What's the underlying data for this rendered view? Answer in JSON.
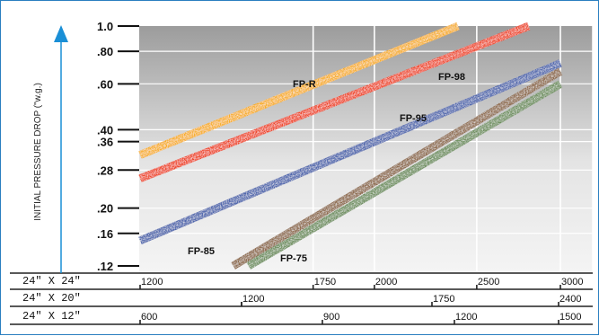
{
  "chart_data": {
    "type": "line",
    "ylabel": "INITIAL PRESSURE DROP (\"w.g.)",
    "y_scale": "log",
    "ylim": [
      0.12,
      1.0
    ],
    "y_ticks": [
      {
        "value": 1.0,
        "label": "1.0"
      },
      {
        "value": 0.8,
        "label": ".80"
      },
      {
        "value": 0.6,
        "label": ".60"
      },
      {
        "value": 0.4,
        "label": ".40"
      },
      {
        "value": 0.36,
        "label": ".36"
      },
      {
        "value": 0.28,
        "label": ".28"
      },
      {
        "value": 0.2,
        "label": ".20"
      },
      {
        "value": 0.16,
        "label": ".16"
      },
      {
        "value": 0.12,
        "label": ".12"
      }
    ],
    "x_scale": "log",
    "x_scales": [
      {
        "label": "24\" X 24\"",
        "ticks": [
          {
            "value": 1200,
            "label": "1200"
          },
          {
            "value": 1750,
            "label": "1750"
          },
          {
            "value": 2000,
            "label": "2000"
          },
          {
            "value": 2500,
            "label": "2500"
          },
          {
            "value": 3000,
            "label": "3000"
          }
        ]
      },
      {
        "label": "24\" X 20\"",
        "ticks": [
          {
            "value": 1000,
            "label": ""
          },
          {
            "value": 1200,
            "label": "1200"
          },
          {
            "value": 1750,
            "label": "1750"
          },
          {
            "value": 2400,
            "label": "2400"
          }
        ]
      },
      {
        "label": "24\" X 12\"",
        "ticks": [
          {
            "value": 600,
            "label": "600"
          },
          {
            "value": 900,
            "label": "900"
          },
          {
            "value": 1200,
            "label": "1200"
          },
          {
            "value": 1500,
            "label": "1500"
          }
        ]
      }
    ],
    "series": [
      {
        "name": "FP-R",
        "color": "#f6b02c",
        "points": [
          [
            1200,
            0.32
          ],
          [
            2400,
            1.0
          ]
        ]
      },
      {
        "name": "FP-98",
        "color": "#ee4a2a",
        "points": [
          [
            1200,
            0.26
          ],
          [
            2800,
            1.0
          ]
        ]
      },
      {
        "name": "FP-95",
        "color": "#5067ae",
        "points": [
          [
            1200,
            0.15
          ],
          [
            3000,
            0.72
          ]
        ]
      },
      {
        "name": "FP-85",
        "color": "#8f6c4e",
        "points": [
          [
            1470,
            0.12
          ],
          [
            3000,
            0.67
          ]
        ]
      },
      {
        "name": "FP-75",
        "color": "#6f9160",
        "points": [
          [
            1520,
            0.12
          ],
          [
            3000,
            0.6
          ]
        ]
      }
    ]
  }
}
